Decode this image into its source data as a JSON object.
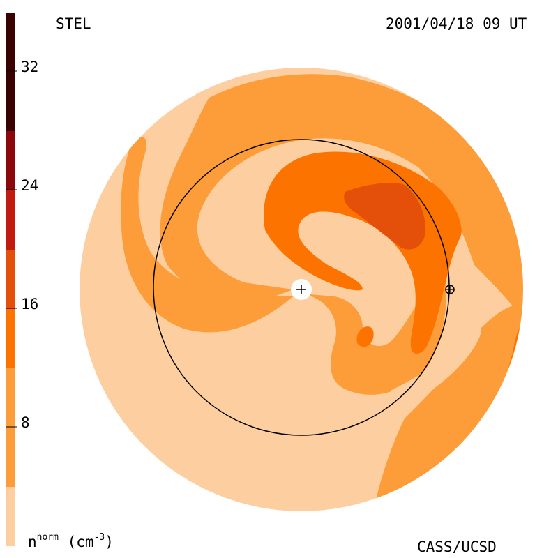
{
  "header": {
    "instrument": "STEL",
    "datetime": "2001/04/18 09 UT"
  },
  "footer": {
    "credit": "CASS/UCSD"
  },
  "colorbar": {
    "variable": "n",
    "variable_sup": "norm",
    "unit_open": "(cm",
    "unit_sup": "-3",
    "unit_close": ")",
    "ticks": [
      "8",
      "16",
      "24",
      "32"
    ],
    "colors": [
      "#fdcfa0",
      "#fd9d3a",
      "#fd7300",
      "#e4500a",
      "#c31a10",
      "#8b0709",
      "#550101",
      "#2a0101"
    ]
  },
  "map": {
    "sun_marker": "+",
    "earth_marker": "⊕"
  }
}
